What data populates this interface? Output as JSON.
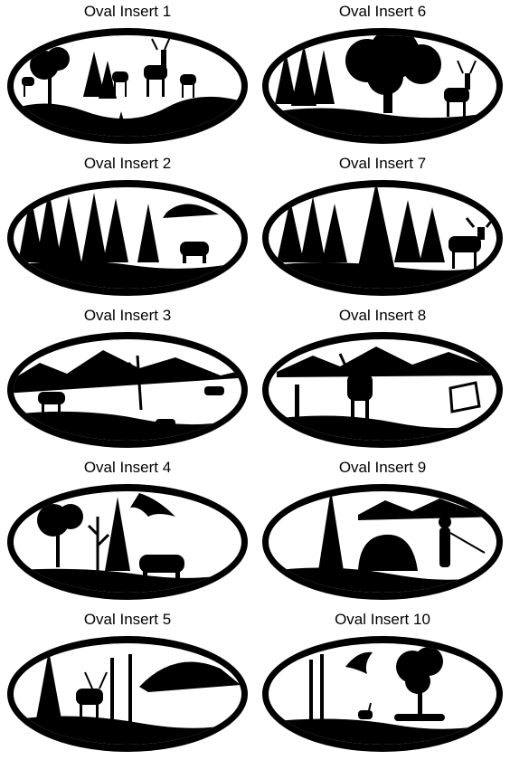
{
  "colors": {
    "ink": "#000000",
    "paper": "#ffffff"
  },
  "inserts": [
    {
      "label": "Oval Insert 1",
      "scene": "elk-herd-forest"
    },
    {
      "label": "Oval Insert 6",
      "scene": "oak-tree-deer"
    },
    {
      "label": "Oval Insert 2",
      "scene": "pine-forest-bear"
    },
    {
      "label": "Oval Insert 7",
      "scene": "pine-forest-moose"
    },
    {
      "label": "Oval Insert 3",
      "scene": "mountains-elk-wolf"
    },
    {
      "label": "Oval Insert 8",
      "scene": "mountains-elk-fence"
    },
    {
      "label": "Oval Insert 4",
      "scene": "trees-eagle-bear"
    },
    {
      "label": "Oval Insert 9",
      "scene": "mountains-fisherman"
    },
    {
      "label": "Oval Insert 5",
      "scene": "deer-mountain-ridge"
    },
    {
      "label": "Oval Insert 10",
      "scene": "eagle-tree-rabbit"
    }
  ]
}
